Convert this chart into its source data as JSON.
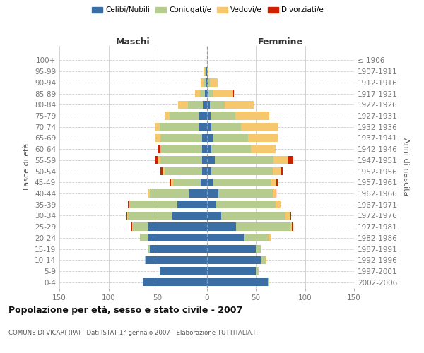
{
  "age_groups": [
    "0-4",
    "5-9",
    "10-14",
    "15-19",
    "20-24",
    "25-29",
    "30-34",
    "35-39",
    "40-44",
    "45-49",
    "50-54",
    "55-59",
    "60-64",
    "65-69",
    "70-74",
    "75-79",
    "80-84",
    "85-89",
    "90-94",
    "95-99",
    "100+"
  ],
  "birth_years": [
    "2002-2006",
    "1997-2001",
    "1992-1996",
    "1987-1991",
    "1982-1986",
    "1977-1981",
    "1972-1976",
    "1967-1971",
    "1962-1966",
    "1957-1961",
    "1952-1956",
    "1947-1951",
    "1942-1946",
    "1937-1941",
    "1932-1936",
    "1927-1931",
    "1922-1926",
    "1917-1921",
    "1912-1916",
    "1907-1911",
    "≤ 1906"
  ],
  "maschi_celibi": [
    65,
    48,
    62,
    58,
    60,
    60,
    35,
    30,
    18,
    6,
    5,
    5,
    5,
    5,
    8,
    8,
    4,
    2,
    1,
    1,
    0
  ],
  "maschi_coniugati": [
    0,
    0,
    1,
    2,
    8,
    15,
    45,
    48,
    40,
    28,
    38,
    42,
    42,
    42,
    40,
    30,
    15,
    5,
    2,
    1,
    0
  ],
  "maschi_vedovi": [
    0,
    0,
    0,
    0,
    0,
    1,
    1,
    1,
    1,
    2,
    2,
    3,
    0,
    5,
    5,
    5,
    10,
    5,
    3,
    1,
    0
  ],
  "maschi_divorziati": [
    0,
    0,
    0,
    0,
    0,
    1,
    1,
    1,
    1,
    2,
    2,
    2,
    3,
    0,
    0,
    0,
    0,
    0,
    0,
    0,
    0
  ],
  "femmine_nubili": [
    62,
    50,
    55,
    50,
    38,
    30,
    15,
    10,
    12,
    6,
    5,
    8,
    5,
    7,
    5,
    4,
    3,
    2,
    1,
    0,
    0
  ],
  "femmine_coniugate": [
    2,
    2,
    5,
    5,
    25,
    55,
    65,
    60,
    55,
    60,
    62,
    60,
    40,
    35,
    30,
    25,
    15,
    5,
    2,
    0,
    0
  ],
  "femmine_vedove": [
    0,
    1,
    1,
    1,
    2,
    2,
    5,
    5,
    3,
    5,
    8,
    15,
    25,
    30,
    38,
    35,
    30,
    20,
    8,
    2,
    0
  ],
  "femmine_divorziate": [
    0,
    0,
    0,
    0,
    0,
    1,
    1,
    1,
    1,
    2,
    2,
    5,
    0,
    0,
    0,
    0,
    0,
    1,
    0,
    0,
    0
  ],
  "colors": {
    "celibi": "#3a6ea5",
    "coniugati": "#b5cc8e",
    "vedovi": "#f5c86e",
    "divorziati": "#cc2200"
  },
  "legend_labels": [
    "Celibi/Nubili",
    "Coniugati/e",
    "Vedovi/e",
    "Divorziati/e"
  ],
  "title": "Popolazione per età, sesso e stato civile - 2007",
  "subtitle": "COMUNE DI VICARI (PA) - Dati ISTAT 1° gennaio 2007 - Elaborazione TUTTITALIA.IT",
  "header_maschi": "Maschi",
  "header_femmine": "Femmine",
  "ylabel_left": "Fasce di età",
  "ylabel_right": "Anni di nascita",
  "xlim": 150,
  "bg_color": "#ffffff",
  "grid_color": "#cccccc",
  "tick_color": "#777777"
}
